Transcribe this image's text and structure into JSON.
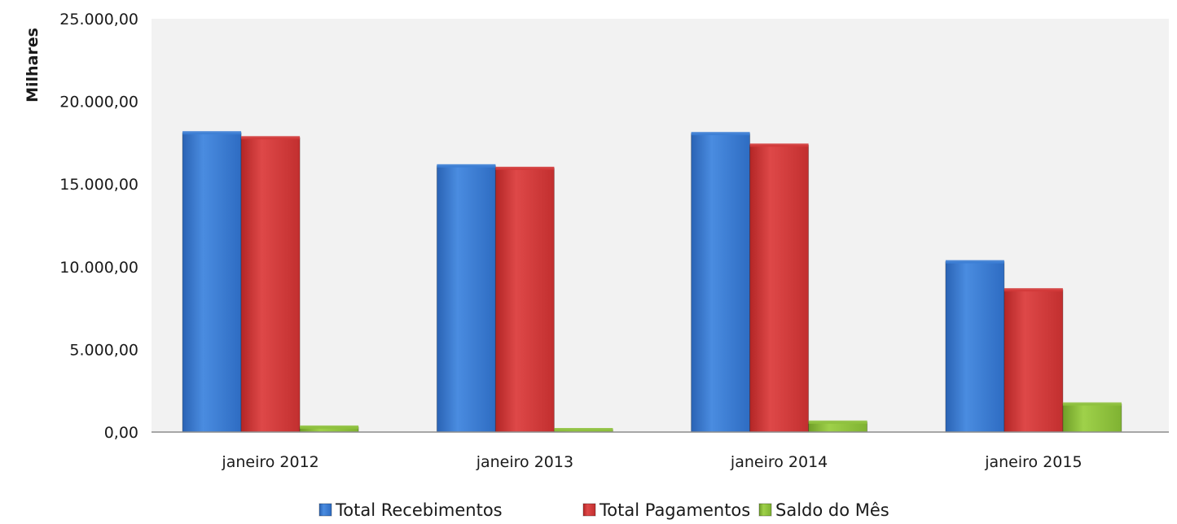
{
  "chart_data": {
    "type": "bar",
    "title": "",
    "xlabel": "",
    "ylabel": "Milhares",
    "ylim": [
      0,
      25000
    ],
    "yticks": [
      0,
      5000,
      10000,
      15000,
      20000,
      25000
    ],
    "ytick_labels": [
      "0,00",
      "5.000,00",
      "10.000,00",
      "15.000,00",
      "20.000,00",
      "25.000,00"
    ],
    "categories": [
      "janeiro 2012",
      "janeiro 2013",
      "janeiro 2014",
      "janeiro 2015"
    ],
    "series": [
      {
        "name": "Total Recebimentos",
        "color": "#3d7fd6",
        "values": [
          18100,
          16100,
          18050,
          10300
        ]
      },
      {
        "name": "Total Pagamentos",
        "color": "#d43a3a",
        "values": [
          17800,
          15950,
          17350,
          8600
        ]
      },
      {
        "name": "Saldo do Mês",
        "color": "#8fc23e",
        "values": [
          300,
          150,
          600,
          1700
        ]
      }
    ],
    "grid": false,
    "legend_position": "bottom",
    "plot_background": "#f2f2f2"
  }
}
